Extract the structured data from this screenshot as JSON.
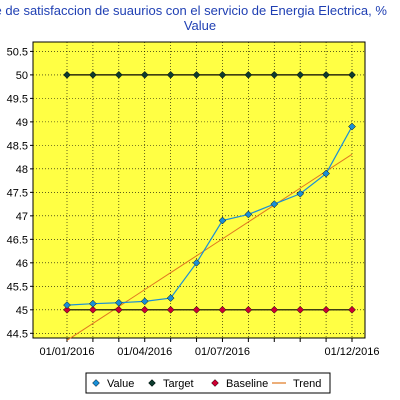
{
  "chart_data": {
    "type": "line",
    "title": "Indice de satisfaccion de suaurios con el servicio de Energia Electrica, %",
    "subtitle": "Value",
    "xlabel": "",
    "ylabel": "",
    "ylim": [
      44.4,
      50.7
    ],
    "y_ticks": [
      "44.5",
      "45",
      "45.5",
      "46",
      "46.5",
      "47",
      "47.5",
      "48",
      "48.5",
      "49",
      "49.5",
      "50",
      "50.5"
    ],
    "x": [
      "2016-01",
      "2016-02",
      "2016-03",
      "2016-04",
      "2016-05",
      "2016-06",
      "2016-07",
      "2016-08",
      "2016-09",
      "2016-10",
      "2016-11",
      "2016-12"
    ],
    "x_ticks": [
      {
        "index": 0,
        "label": "01/01/2016"
      },
      {
        "index": 3,
        "label": "01/04/2016"
      },
      {
        "index": 6,
        "label": "01/07/2016"
      },
      {
        "index": 11,
        "label": "01/12/2016"
      }
    ],
    "grid": true,
    "legend": "bottom",
    "background": "#ffff44",
    "series": [
      {
        "name": "Value",
        "values": [
          45.1,
          45.13,
          45.15,
          45.18,
          45.25,
          46.0,
          46.9,
          47.03,
          47.25,
          47.47,
          47.9,
          48.9
        ],
        "color": "#1a8fd6",
        "marker": "diamond"
      },
      {
        "name": "Target",
        "values": [
          50,
          50,
          50,
          50,
          50,
          50,
          50,
          50,
          50,
          50,
          50,
          50
        ],
        "color": "#000000",
        "marker": "diamond",
        "marker_color": "#0d3b2e"
      },
      {
        "name": "Baseline",
        "values": [
          45,
          45,
          45,
          45,
          45,
          45,
          45,
          45,
          45,
          45,
          45,
          45
        ],
        "color": "#000000",
        "marker": "diamond",
        "marker_color": "#cc0033"
      },
      {
        "name": "Trend",
        "values": [
          44.35,
          44.71,
          45.07,
          45.43,
          45.79,
          46.15,
          46.51,
          46.87,
          47.23,
          47.59,
          47.95,
          48.31
        ],
        "color": "#e07820",
        "marker": "none"
      }
    ]
  }
}
